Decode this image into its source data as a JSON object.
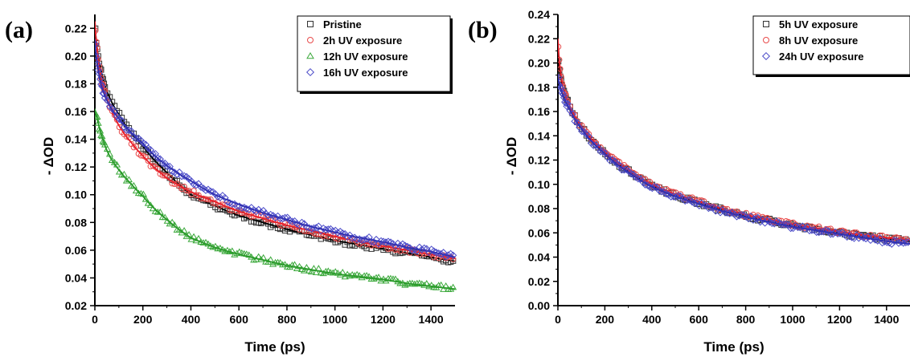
{
  "chart_data": [
    {
      "type": "scatter",
      "panel_label": "(a)",
      "xlabel": "Time (ps)",
      "ylabel": "- ΔOD",
      "xlim": [
        0,
        1500
      ],
      "ylim": [
        0.02,
        0.23
      ],
      "xticks": [
        "0",
        "200",
        "400",
        "600",
        "800",
        "1000",
        "1200",
        "1400"
      ],
      "yticks": [
        "0.02",
        "0.04",
        "0.06",
        "0.08",
        "0.10",
        "0.12",
        "0.14",
        "0.16",
        "0.18",
        "0.20",
        "0.22"
      ],
      "legend_position": "top-right",
      "grid": false,
      "fit_line_color": "#000000",
      "series": [
        {
          "name": "Pristine",
          "marker": "square",
          "color": "#333333",
          "fit_color": "#000000",
          "x": [
            0,
            10,
            25,
            50,
            100,
            150,
            200,
            300,
            400,
            500,
            600,
            700,
            800,
            900,
            1000,
            1100,
            1200,
            1300,
            1400,
            1500
          ],
          "y": [
            0.225,
            0.205,
            0.19,
            0.175,
            0.158,
            0.145,
            0.135,
            0.116,
            0.1,
            0.092,
            0.085,
            0.08,
            0.075,
            0.071,
            0.067,
            0.064,
            0.061,
            0.058,
            0.055,
            0.052
          ]
        },
        {
          "name": "2h UV exposure",
          "marker": "circle",
          "color": "#e84a4a",
          "fit_color": "#e8202a",
          "x": [
            0,
            10,
            25,
            50,
            100,
            150,
            200,
            300,
            400,
            500,
            600,
            700,
            800,
            900,
            1000,
            1100,
            1200,
            1300,
            1400,
            1500
          ],
          "y": [
            0.225,
            0.205,
            0.185,
            0.17,
            0.15,
            0.138,
            0.128,
            0.112,
            0.102,
            0.095,
            0.088,
            0.083,
            0.078,
            0.074,
            0.07,
            0.066,
            0.063,
            0.06,
            0.057,
            0.054
          ]
        },
        {
          "name": "12h UV exposure",
          "marker": "triangle",
          "color": "#3aa83a",
          "fit_color": "#2a9a2a",
          "x": [
            0,
            10,
            25,
            50,
            100,
            150,
            200,
            300,
            400,
            500,
            600,
            700,
            800,
            900,
            1000,
            1100,
            1200,
            1300,
            1400,
            1500
          ],
          "y": [
            0.162,
            0.155,
            0.145,
            0.132,
            0.118,
            0.108,
            0.099,
            0.082,
            0.069,
            0.062,
            0.057,
            0.053,
            0.049,
            0.046,
            0.043,
            0.041,
            0.039,
            0.036,
            0.034,
            0.032
          ]
        },
        {
          "name": "16h UV exposure",
          "marker": "diamond",
          "color": "#4a4ac8",
          "fit_color": "#3030b0",
          "x": [
            0,
            10,
            25,
            50,
            100,
            150,
            200,
            300,
            400,
            500,
            600,
            700,
            800,
            900,
            1000,
            1100,
            1200,
            1300,
            1400,
            1500
          ],
          "y": [
            0.212,
            0.195,
            0.18,
            0.168,
            0.155,
            0.145,
            0.137,
            0.121,
            0.11,
            0.1,
            0.093,
            0.087,
            0.082,
            0.077,
            0.073,
            0.069,
            0.066,
            0.062,
            0.059,
            0.055
          ]
        }
      ]
    },
    {
      "type": "scatter",
      "panel_label": "(b)",
      "xlabel": "Time (ps)",
      "ylabel": "- ΔOD",
      "xlim": [
        0,
        1500
      ],
      "ylim": [
        0.0,
        0.24
      ],
      "xticks": [
        "0",
        "200",
        "400",
        "600",
        "800",
        "1000",
        "1200",
        "1400"
      ],
      "yticks": [
        "0.00",
        "0.02",
        "0.04",
        "0.06",
        "0.08",
        "0.10",
        "0.12",
        "0.14",
        "0.16",
        "0.18",
        "0.20",
        "0.22",
        "0.24"
      ],
      "legend_position": "top-right",
      "grid": false,
      "series": [
        {
          "name": "5h UV exposure",
          "marker": "square",
          "color": "#333333",
          "fit_color": "#000000",
          "x": [
            0,
            10,
            25,
            50,
            100,
            150,
            200,
            300,
            400,
            500,
            600,
            700,
            800,
            900,
            1000,
            1100,
            1200,
            1300,
            1400,
            1500
          ],
          "y": [
            0.205,
            0.19,
            0.178,
            0.165,
            0.148,
            0.135,
            0.126,
            0.111,
            0.099,
            0.091,
            0.085,
            0.079,
            0.074,
            0.07,
            0.066,
            0.063,
            0.06,
            0.057,
            0.055,
            0.053
          ]
        },
        {
          "name": "8h UV exposure",
          "marker": "circle",
          "color": "#e84a4a",
          "fit_color": "#e8202a",
          "x": [
            0,
            10,
            25,
            50,
            100,
            150,
            200,
            300,
            400,
            500,
            600,
            700,
            800,
            900,
            1000,
            1100,
            1200,
            1300,
            1400,
            1500
          ],
          "y": [
            0.22,
            0.195,
            0.178,
            0.165,
            0.148,
            0.136,
            0.127,
            0.112,
            0.1,
            0.092,
            0.086,
            0.08,
            0.075,
            0.071,
            0.067,
            0.064,
            0.061,
            0.058,
            0.056,
            0.054
          ]
        },
        {
          "name": "24h UV exposure",
          "marker": "diamond",
          "color": "#4a4ac8",
          "fit_color": "#3030b0",
          "x": [
            0,
            10,
            25,
            50,
            100,
            150,
            200,
            300,
            400,
            500,
            600,
            700,
            800,
            900,
            1000,
            1100,
            1200,
            1300,
            1400,
            1500
          ],
          "y": [
            0.19,
            0.18,
            0.172,
            0.162,
            0.146,
            0.134,
            0.125,
            0.11,
            0.098,
            0.09,
            0.084,
            0.078,
            0.073,
            0.069,
            0.065,
            0.062,
            0.059,
            0.056,
            0.053,
            0.051
          ]
        }
      ]
    }
  ]
}
